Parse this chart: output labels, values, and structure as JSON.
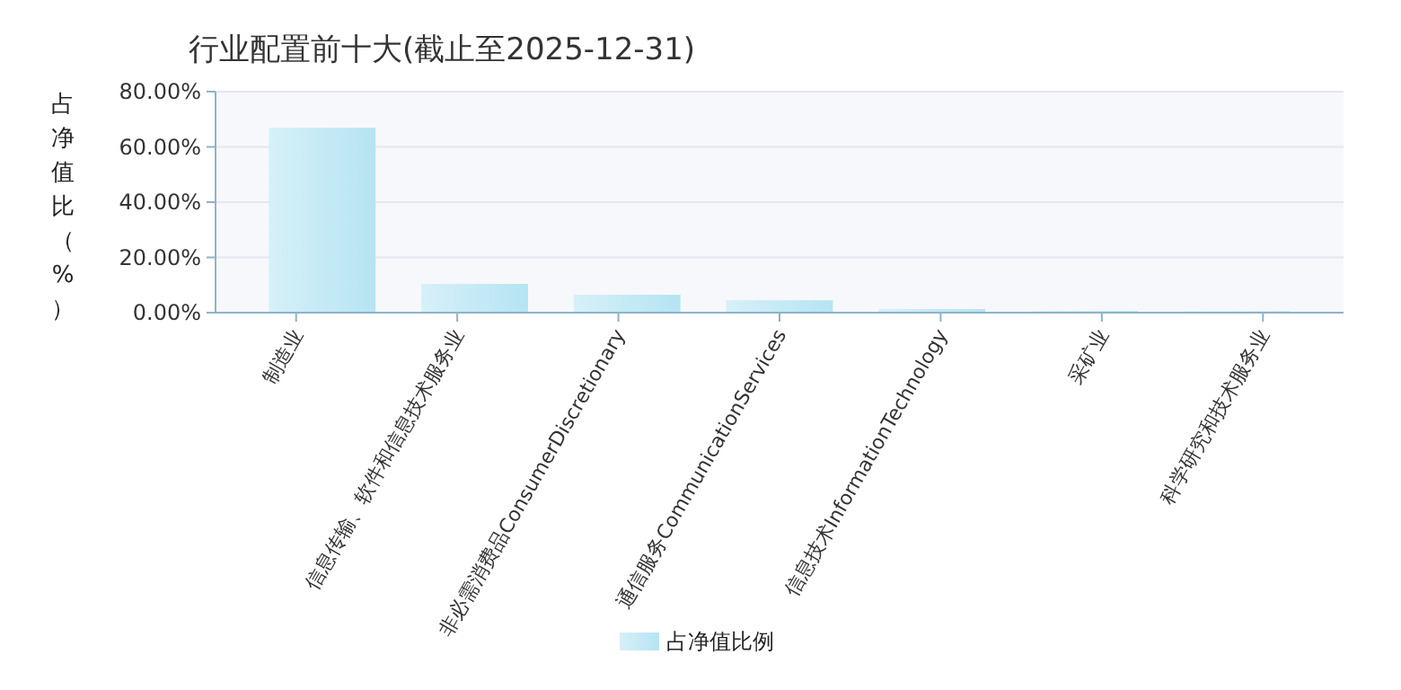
{
  "chart_data": {
    "type": "bar",
    "title": "行业配置前十大(截止至2025-12-31)",
    "ylabel": "占净值比（%）",
    "categories": [
      "制造业",
      "信息传输、软件和信息技术服务业",
      "非必需消费品ConsumerDiscretionary",
      "通信服务CommunicationServices",
      "信息技术InformationTechnology",
      "采矿业",
      "科学研究和技术服务业"
    ],
    "series": [
      {
        "name": "占净值比例",
        "color": "#b5e4f3",
        "values": [
          66.9,
          10.4,
          6.5,
          4.5,
          1.3,
          0.6,
          0.5
        ]
      }
    ],
    "ylim": [
      0,
      80
    ],
    "yticks": [
      {
        "value": 0,
        "label": "0.00%"
      },
      {
        "value": 20,
        "label": "20.00%"
      },
      {
        "value": 40,
        "label": "40.00%"
      },
      {
        "value": 60,
        "label": "60.00%"
      },
      {
        "value": 80,
        "label": "80.00%"
      }
    ],
    "grid": "y",
    "legend": "bottom"
  }
}
